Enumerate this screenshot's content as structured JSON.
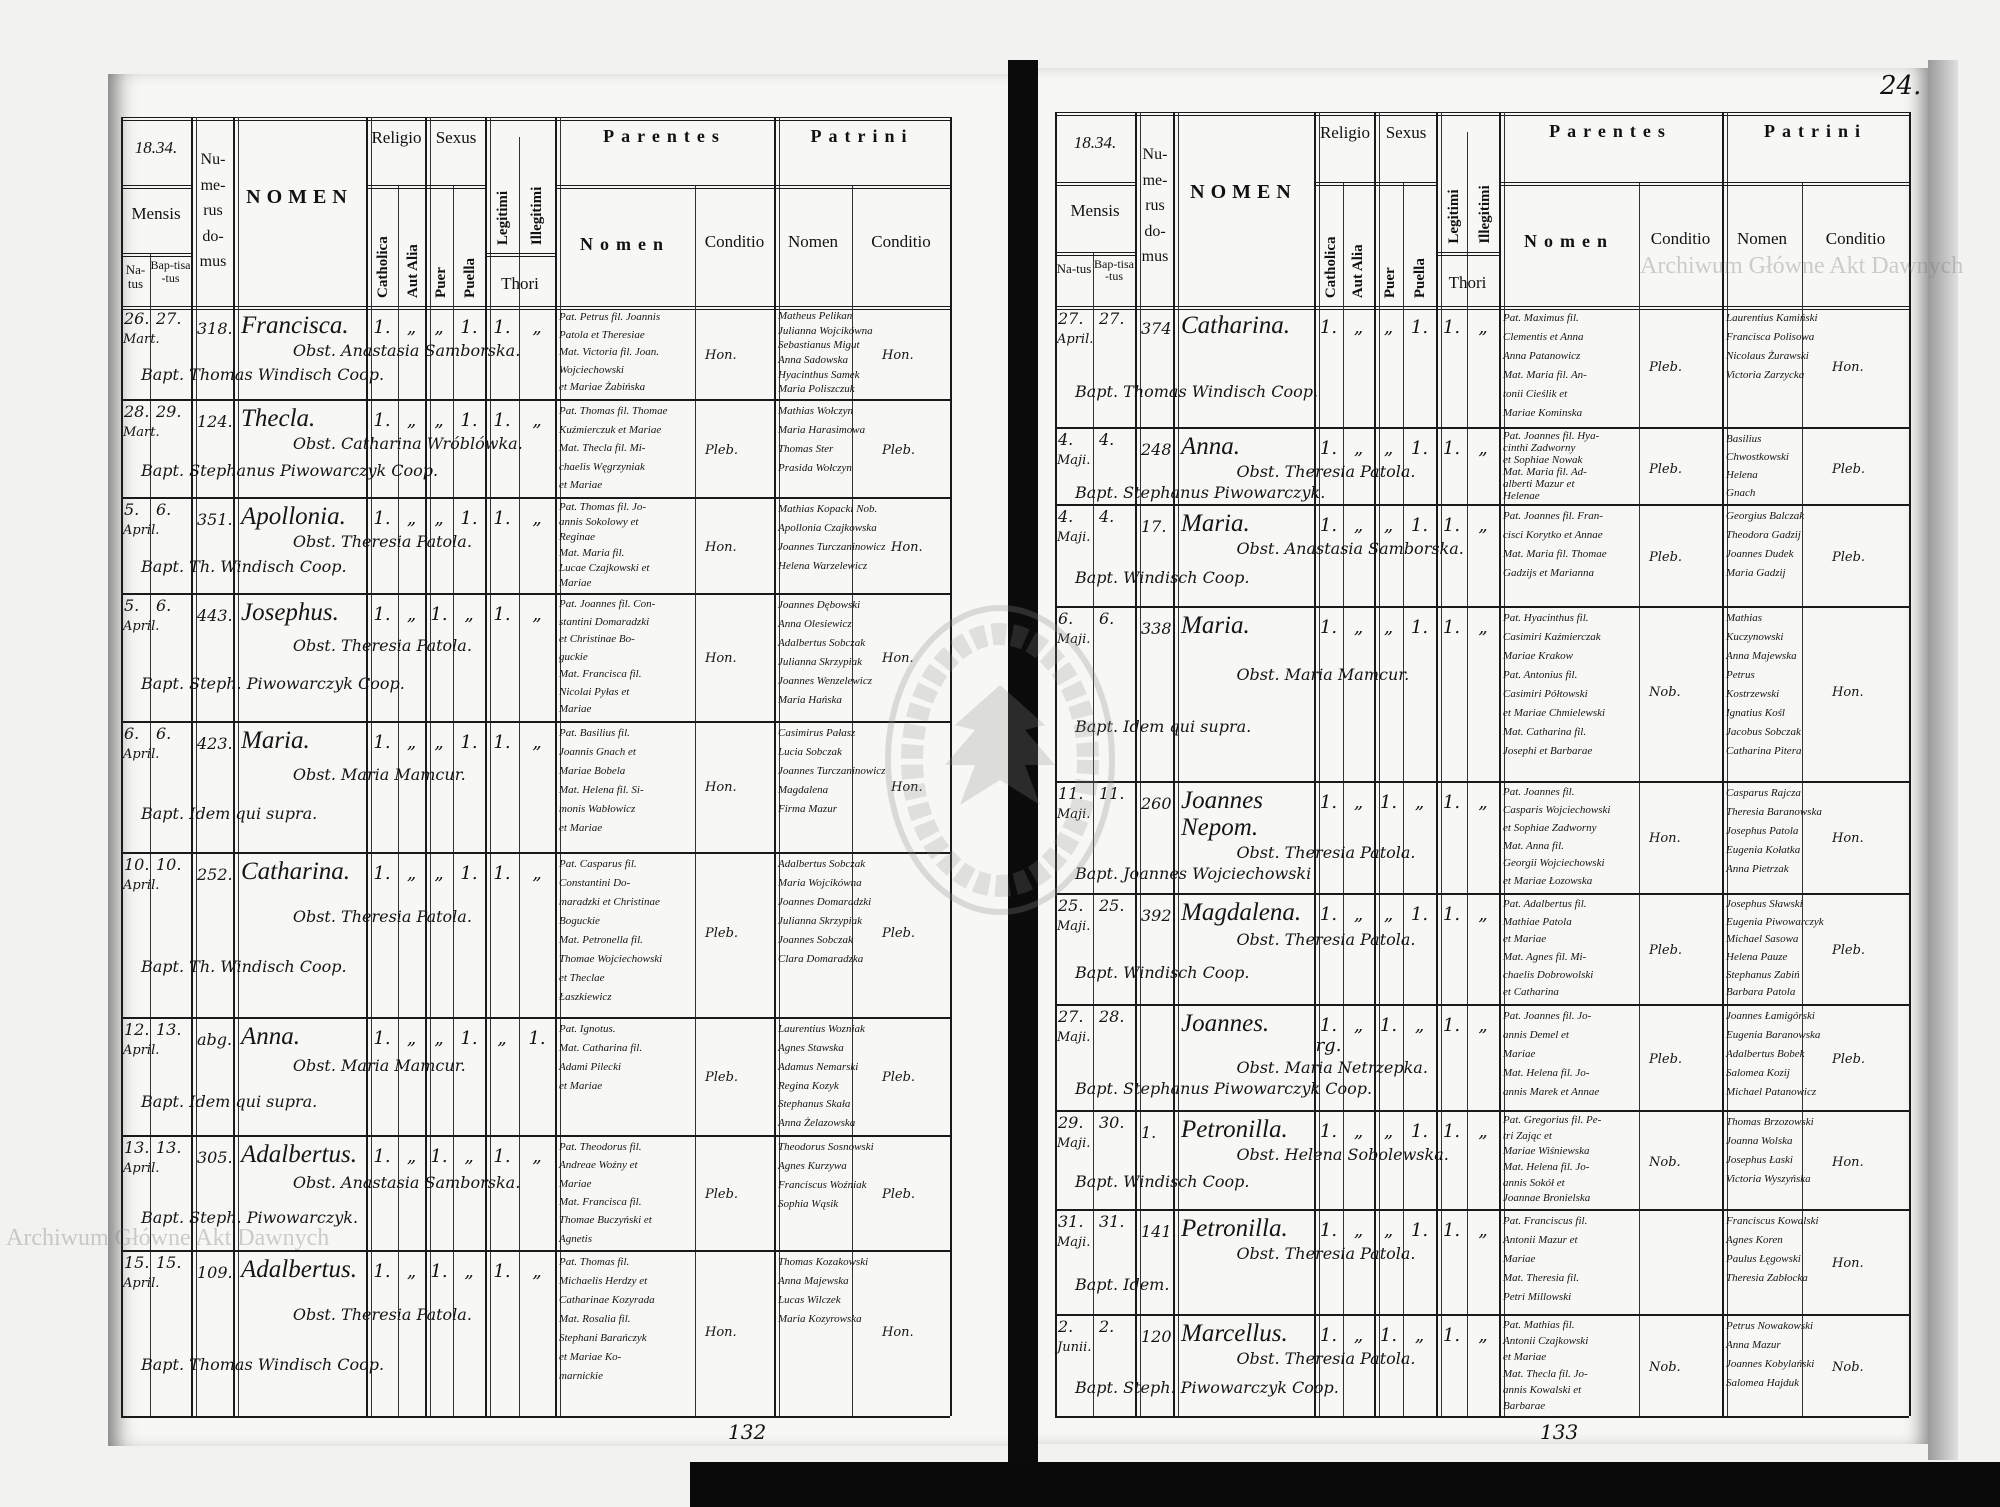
{
  "watermark": {
    "text": "Archiwum Główne Akt Dawnych",
    "seal_text": "ARCHIWUM GŁÓWNE AKT DAWNYCH"
  },
  "headers": {
    "mensis": "Mensis",
    "natus": "Na-tus",
    "baptisatus": "Bap-tisa-tus",
    "numerus_domus": "Nu-me-rus do-mus",
    "nomen": "NOMEN",
    "religio": "Religio",
    "catholica": "Catholica",
    "aut_alia": "Aut Alia",
    "sexus": "Sexus",
    "puer": "Puer",
    "puella": "Puella",
    "legitimi": "Legitimi",
    "illegitimi": "Illegitimi",
    "thori": "Thori",
    "parentes": "Parentes",
    "parentes_nomen": "Nomen",
    "parentes_conditio": "Conditio",
    "patrini": "Patrini",
    "patrini_nomen": "Nomen",
    "patrini_conditio": "Conditio"
  },
  "left_page": {
    "year": "18.34.",
    "folio": "132",
    "entries": [
      {
        "natus": "26.",
        "mensis": "Mart.",
        "bapt": "27.",
        "num": "318.",
        "nomen": "Francisca.",
        "marks": [
          "1.",
          "„",
          "„",
          "1.",
          "1.",
          "„"
        ],
        "obst": "Obst. Anastasia Samborska.",
        "baptizans": "Bapt. Thomas Windisch Coop.",
        "parentes": [
          "Pat. Petrus fil. Joannis",
          "Patola et Theresiae",
          "Mat. Victoria fil. Joan.",
          "Wojciechowski",
          "et Mariae Żabińska"
        ],
        "par_cond": "Hon.",
        "patrini": [
          "Matheus Pelikan",
          "Julianna Wojcikówna",
          "Sebastianus Migut",
          "Anna Sadowska",
          "Hyacinthus Samek",
          "Maria Poliszczuk"
        ],
        "patr_cond": "Hon."
      },
      {
        "natus": "28.",
        "mensis": "Mart.",
        "bapt": "29.",
        "num": "124.",
        "nomen": "Thecla.",
        "marks": [
          "1.",
          "„",
          "„",
          "1.",
          "1.",
          "„"
        ],
        "obst": "Obst. Catharina Wróblówka.",
        "baptizans": "Bapt. Stephanus Piwowarczyk Coop.",
        "parentes": [
          "Pat. Thomas fil. Thomae",
          "Kuźmierczuk et Mariae",
          "Mat. Thecla fil. Mi-",
          "chaelis Węgrzyniak",
          "et Mariae"
        ],
        "par_cond": "Pleb.",
        "patrini": [
          "Mathias Wołczyn",
          "Maria Harasimowa",
          "Thomas Ster",
          "Prasida Wołczyn"
        ],
        "patr_cond": "Pleb."
      },
      {
        "natus": "5.",
        "mensis": "April.",
        "bapt": "6.",
        "num": "351.",
        "nomen": "Apollonia.",
        "marks": [
          "1.",
          "„",
          "„",
          "1.",
          "1.",
          "„"
        ],
        "obst": "Obst. Theresia Patola.",
        "baptizans": "Bapt. Th. Windisch Coop.",
        "parentes": [
          "Pat. Thomas fil. Jo-",
          "annis Sokolowy et",
          "Reginae",
          "Mat. Maria fil.",
          "Lucae Czajkowski et",
          "Mariae"
        ],
        "par_cond": "Hon.",
        "patrini": [
          "Mathias Kopacki Nob.",
          "Apollonia Czajkowska",
          "Joannes Turczaninowicz",
          "Helena Warzelewicz"
        ],
        "patr_cond": "Hon."
      },
      {
        "natus": "5.",
        "mensis": "April.",
        "bapt": "6.",
        "num": "443.",
        "nomen": "Josephus.",
        "marks": [
          "1.",
          "„",
          "1.",
          "„",
          "1.",
          "„"
        ],
        "obst": "Obst. Theresia Patola.",
        "baptizans": "Bapt. Steph. Piwowarczyk Coop.",
        "parentes": [
          "Pat. Joannes fil. Con-",
          "stantini Domaradzki",
          "et Christinae Bo-",
          "guckie",
          "Mat. Francisca fil.",
          "Nicolai Pyłas et",
          "Mariae"
        ],
        "par_cond": "Hon.",
        "patrini": [
          "Joannes Dębowski",
          "Anna Olesiewicz",
          "Adalbertus Sobczak",
          "Julianna Skrzypiak",
          "Joannes Wenzelewicz",
          "Maria Hańska"
        ],
        "patr_cond": "Hon."
      },
      {
        "natus": "6.",
        "mensis": "April.",
        "bapt": "6.",
        "num": "423.",
        "nomen": "Maria.",
        "marks": [
          "1.",
          "„",
          "„",
          "1.",
          "1.",
          "„"
        ],
        "obst": "Obst. Maria Mamcur.",
        "baptizans": "Bapt. Idem qui supra.",
        "parentes": [
          "Pat. Basilius fil.",
          "Joannis Gnach et",
          "Mariae Bobela",
          "Mat. Helena fil. Si-",
          "monis Wabłowicz",
          "et Mariae"
        ],
        "par_cond": "Hon.",
        "patrini": [
          "Casimirus Pałasz",
          "Lucia Sobczak",
          "Joannes Turczaninowicz",
          "Magdalena",
          "Firma Mazur"
        ],
        "patr_cond": "Hon."
      },
      {
        "natus": "10.",
        "mensis": "April.",
        "bapt": "10.",
        "num": "252.",
        "nomen": "Catharina.",
        "marks": [
          "1.",
          "„",
          "„",
          "1.",
          "1.",
          "„"
        ],
        "obst": "Obst. Theresia Patola.",
        "baptizans": "Bapt. Th. Windisch Coop.",
        "parentes": [
          "Pat. Casparus fil.",
          "Constantini Do-",
          "maradzki et Christinae",
          "Boguckie",
          "Mat. Petronella fil.",
          "Thomae Wojciechowski",
          "et Theclae",
          "Łaszkiewicz"
        ],
        "par_cond": "Pleb.",
        "patrini": [
          "Adalbertus Sobczak",
          "Maria Wojcikówna",
          "Joannes Domaradzki",
          "Julianna Skrzypiak",
          "Joannes Sobczak",
          "Clara Domaradzka"
        ],
        "patr_cond": "Pleb."
      },
      {
        "natus": "12.",
        "mensis": "April.",
        "bapt": "13.",
        "num": "abg.",
        "nomen": "Anna.",
        "marks": [
          "1.",
          "„",
          "„",
          "1.",
          "„",
          "1."
        ],
        "obst": "Obst. Maria Mamcur.",
        "baptizans": "Bapt. Idem qui supra.",
        "parentes": [
          "Pat. Ignotus.",
          "Mat. Catharina fil.",
          "Adami Pilecki",
          "et Mariae"
        ],
        "par_cond": "Pleb.",
        "patrini": [
          "Laurentius Wozniak",
          "Agnes Stawska",
          "Adamus Nemarski",
          "Regina Kozyk",
          "Stephanus Skała",
          "Anna Żelazowska"
        ],
        "patr_cond": "Pleb."
      },
      {
        "natus": "13.",
        "mensis": "April.",
        "bapt": "13.",
        "num": "305.",
        "nomen": "Adalbertus.",
        "marks": [
          "1.",
          "„",
          "1.",
          "„",
          "1.",
          "„"
        ],
        "obst": "Obst. Anastasia Samborska.",
        "baptizans": "Bapt. Steph. Piwowarczyk.",
        "parentes": [
          "Pat. Theodorus fil.",
          "Andreae Woźny et",
          "Mariae",
          "Mat. Francisca fil.",
          "Thomae Buczyński et",
          "Agnetis"
        ],
        "par_cond": "Pleb.",
        "patrini": [
          "Theodorus Sosnowski",
          "Agnes Kurzywa",
          "Franciscus Woźniak",
          "Sophia Wąsik"
        ],
        "patr_cond": "Pleb."
      },
      {
        "natus": "15.",
        "mensis": "April.",
        "bapt": "15.",
        "num": "109.",
        "nomen": "Adalbertus.",
        "marks": [
          "1.",
          "„",
          "1.",
          "„",
          "1.",
          "„"
        ],
        "obst": "Obst. Theresia Patola.",
        "baptizans": "Bapt. Thomas Windisch Coop.",
        "parentes": [
          "Pat. Thomas fil.",
          "Michaelis Herdzy et",
          "Catharinae Kozyrada",
          "Mat. Rosalia fil.",
          "Stephani Barańczyk",
          "et Mariae Ko-",
          "marnickie"
        ],
        "par_cond": "Hon.",
        "patrini": [
          "Thomas Kozakowski",
          "Anna Majewska",
          "Lucas Wilczek",
          "Maria Kozyrowska"
        ],
        "patr_cond": "Hon."
      }
    ]
  },
  "right_page": {
    "year": "18.34.",
    "page_number": "24.",
    "folio": "133",
    "entries": [
      {
        "natus": "27.",
        "mensis": "April.",
        "bapt": "27.",
        "num": "374.",
        "nomen": "Catharina.",
        "marks": [
          "1.",
          "„",
          "„",
          "1.",
          "1.",
          "„"
        ],
        "obst": "",
        "baptizans": "Bapt. Thomas Windisch Coop.",
        "parentes": [
          "Pat. Maximus fil.",
          "Clementis et Anna",
          "Anna Patanowicz",
          "Mat. Maria fil. An-",
          "tonii Cieślik et",
          "Mariae Kominska"
        ],
        "par_cond": "Pleb.",
        "patrini": [
          "Laurentius Kamiński",
          "Francisca Polisowa",
          "Nicolaus Żurawski",
          "Victoria Zarzycka"
        ],
        "patr_cond": "Hon."
      },
      {
        "natus": "4.",
        "mensis": "Maji.",
        "bapt": "4.",
        "num": "248.",
        "nomen": "Anna.",
        "marks": [
          "1.",
          "„",
          "„",
          "1.",
          "1.",
          "„"
        ],
        "obst": "Obst. Theresia Patola.",
        "baptizans": "Bapt. Stephanus Piwowarczyk.",
        "parentes": [
          "Pat. Joannes fil. Hya-",
          "cinthi Zadworny",
          "et Sophiae Nowak",
          "Mat. Maria fil. Ad-",
          "alberti Mazur et",
          "Helenae"
        ],
        "par_cond": "Pleb.",
        "patrini": [
          "Basilius",
          "Chwostkowski",
          "Helena",
          "Gnach"
        ],
        "patr_cond": "Pleb."
      },
      {
        "natus": "4.",
        "mensis": "Maji.",
        "bapt": "4.",
        "num": "17.",
        "nomen": "Maria.",
        "marks": [
          "1.",
          "„",
          "„",
          "1.",
          "1.",
          "„"
        ],
        "obst": "Obst. Anastasia Samborska.",
        "baptizans": "Bapt. Windisch Coop.",
        "parentes": [
          "Pat. Joannes fil. Fran-",
          "cisci Korytko et Annae",
          "Mat. Maria fil. Thomae",
          "Gadzijs et Marianna"
        ],
        "par_cond": "Pleb.",
        "patrini": [
          "Georgius Balczak",
          "Theodora Gadzij",
          "Joannes Dudek",
          "Maria Gadzij"
        ],
        "patr_cond": "Pleb."
      },
      {
        "natus": "6.",
        "mensis": "Maji.",
        "bapt": "6.",
        "num": "338.",
        "nomen": "Maria.",
        "marks": [
          "1.",
          "„",
          "„",
          "1.",
          "1.",
          "„"
        ],
        "obst": "Obst. Maria Mamcur.",
        "baptizans": "Bapt. Idem qui supra.",
        "parentes": [
          "Pat. Hyacinthus fil.",
          "Casimiri Kaźmierczak",
          "Mariae Krakow",
          "Pat. Antonius fil.",
          "Casimiri Półtowski",
          "et Mariae Chmielewski",
          "Mat. Catharina fil.",
          "Josephi et Barbarae"
        ],
        "par_cond": "Nob.",
        "patrini": [
          "Mathias",
          "Kuczynowski",
          "Anna Majewska",
          "Petrus",
          "Kostrzewski",
          "Ignatius Kośl",
          "Jacobus Sobczak",
          "Catharina Pitera"
        ],
        "patr_cond": "Hon."
      },
      {
        "natus": "11.",
        "mensis": "Maji.",
        "bapt": "11.",
        "num": "260.",
        "nomen": "Joannes Nepom.",
        "marks": [
          "1.",
          "„",
          "1.",
          "„",
          "1.",
          "„"
        ],
        "obst": "Obst. Theresia Patola.",
        "baptizans": "Bapt. Joannes Wojciechowski",
        "parentes": [
          "Pat. Joannes fil.",
          "Casparis Wojciechowski",
          "et Sophiae Zadworny",
          "Mat. Anna fil.",
          "Georgii Wojciechowski",
          "et Mariae Łozowska"
        ],
        "par_cond": "Hon.",
        "patrini": [
          "Casparus Rajcza",
          "Theresia Baranowska",
          "Josephus Patola",
          "Eugenia Kołatka",
          "Anna Pietrzak"
        ],
        "patr_cond": "Hon."
      },
      {
        "natus": "25.",
        "mensis": "Maji.",
        "bapt": "25.",
        "num": "392.",
        "nomen": "Magdalena.",
        "marks": [
          "1.",
          "„",
          "„",
          "1.",
          "1.",
          "„"
        ],
        "obst": "Obst. Theresia Patola.",
        "baptizans": "Bapt. Windisch Coop.",
        "parentes": [
          "Pat. Adalbertus fil.",
          "Mathiae Patola",
          "et Mariae",
          "Mat. Agnes fil. Mi-",
          "chaelis Dobrowolski",
          "et Catharina"
        ],
        "par_cond": "Pleb.",
        "patrini": [
          "Josephus Sławski",
          "Eugenia Piwowarczyk",
          "Michael Sasowa",
          "Helena Pauze",
          "Stephanus Zabiń",
          "Barbara Patola"
        ],
        "patr_cond": "Pleb."
      },
      {
        "natus": "27.",
        "mensis": "Maji.",
        "bapt": "28.",
        "num": "",
        "nomen": "Joannes.",
        "marks": [
          "1. rg.",
          "„",
          "1.",
          "„",
          "1.",
          "„"
        ],
        "obst": "Obst. Maria Netrzepka.",
        "baptizans": "Bapt. Stephanus Piwowarczyk Coop.",
        "parentes": [
          "Pat. Joannes fil. Jo-",
          "annis Demel et",
          "Mariae",
          "Mat. Helena fil. Jo-",
          "annis Marek et Annae"
        ],
        "par_cond": "Pleb.",
        "patrini": [
          "Joannes Łamigórski",
          "Eugenia Baranowska",
          "Adalbertus Bobek",
          "Salomea Kozij",
          "Michael Patanowicz"
        ],
        "patr_cond": "Pleb."
      },
      {
        "natus": "29.",
        "mensis": "Maji.",
        "bapt": "30.",
        "num": "1.",
        "nomen": "Petronilla.",
        "marks": [
          "1.",
          "„",
          "„",
          "1.",
          "1.",
          "„"
        ],
        "obst": "Obst. Helena Sobolewska.",
        "baptizans": "Bapt. Windisch Coop.",
        "parentes": [
          "Pat. Gregorius fil. Pe-",
          "tri Zając et",
          "Mariae Wiśniewska",
          "Mat. Helena fil. Jo-",
          "annis Sokół et",
          "Joannae Bronielska"
        ],
        "par_cond": "Nob.",
        "patrini": [
          "Thomas Brzozowski",
          "Joanna Wolska",
          "Josephus Łaski",
          "Victoria Wyszyńska"
        ],
        "patr_cond": "Hon."
      },
      {
        "natus": "31.",
        "mensis": "Maji.",
        "bapt": "31.",
        "num": "141.",
        "nomen": "Petronilla.",
        "marks": [
          "1.",
          "„",
          "„",
          "1.",
          "1.",
          "„"
        ],
        "obst": "Obst. Theresia Patola.",
        "baptizans": "Bapt. Idem.",
        "parentes": [
          "Pat. Franciscus fil.",
          "Antonii Mazur et",
          "Mariae",
          "Mat. Theresia fil.",
          "Petri Millowski"
        ],
        "par_cond": "",
        "patrini": [
          "Franciscus Kowalski",
          "Agnes Koren",
          "Paulus Łęgowski",
          "Theresia Zabłocka"
        ],
        "patr_cond": "Hon."
      },
      {
        "natus": "2.",
        "mensis": "Junii.",
        "bapt": "2.",
        "num": "120.",
        "nomen": "Marcellus.",
        "marks": [
          "1.",
          "„",
          "1.",
          "„",
          "1.",
          "„"
        ],
        "obst": "Obst. Theresia Patola.",
        "baptizans": "Bapt. Steph. Piwowarczyk Coop.",
        "parentes": [
          "Pat. Mathias fil.",
          "Antonii Czajkowski",
          "et Mariae",
          "Mat. Thecla fil. Jo-",
          "annis Kowalski et",
          "Barbarae"
        ],
        "par_cond": "Nob.",
        "patrini": [
          "Petrus Nowakowski",
          "Anna Mazur",
          "Joannes Kobylański",
          "Salomea Hajduk"
        ],
        "patr_cond": "Nob."
      }
    ]
  }
}
